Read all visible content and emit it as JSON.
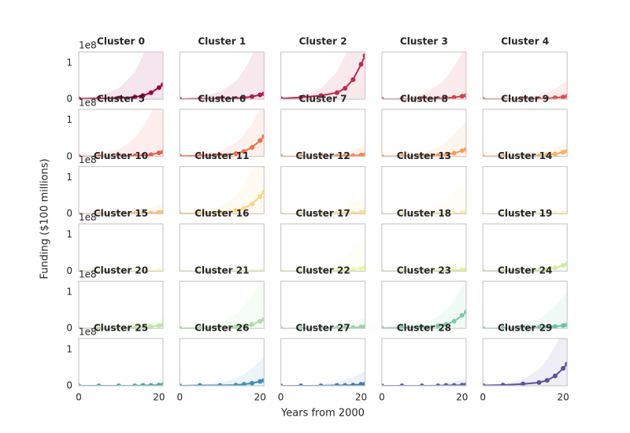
{
  "x_label": "Years from 2000",
  "y_label": "Funding ($100 millions)",
  "y_offset": "1e8",
  "x": [
    0,
    5,
    10,
    14,
    16,
    18,
    20,
    21
  ],
  "xlim": [
    0,
    21
  ],
  "ylim": [
    0,
    1.3
  ],
  "xticks": [
    0,
    20
  ],
  "yticks": [
    0,
    1
  ],
  "chart_data": [
    {
      "type": "line",
      "title": "Cluster 0",
      "color": "#9e0142",
      "values": [
        0.01,
        0.02,
        0.03,
        0.06,
        0.1,
        0.18,
        0.32,
        0.4
      ],
      "upper": [
        0.03,
        0.09,
        0.3,
        0.75,
        1.2,
        1.8,
        2.55,
        3
      ]
    },
    {
      "type": "line",
      "title": "Cluster 1",
      "color": "#b01a4a",
      "values": [
        0,
        0.01,
        0.01,
        0.02,
        0.04,
        0.07,
        0.12,
        0.15
      ],
      "upper": [
        0.02,
        0.06,
        0.2,
        0.5,
        0.8,
        1.2,
        1.7,
        2
      ]
    },
    {
      "type": "line",
      "title": "Cluster 2",
      "color": "#c2294a",
      "values": [
        0.02,
        0.05,
        0.1,
        0.18,
        0.3,
        0.54,
        0.96,
        1.2
      ],
      "upper": [
        0.03,
        0.09,
        0.3,
        0.75,
        1.2,
        1.8,
        2.55,
        3
      ]
    },
    {
      "type": "line",
      "title": "Cluster 3",
      "color": "#d53e4f",
      "values": [
        0,
        0,
        0.01,
        0.02,
        0.03,
        0.05,
        0.08,
        0.1
      ],
      "upper": [
        0.02,
        0.05,
        0.15,
        0.38,
        0.6,
        0.9,
        1.28,
        1.5
      ]
    },
    {
      "type": "line",
      "title": "Cluster 4",
      "color": "#e04a4c",
      "values": [
        0,
        0,
        0.01,
        0.01,
        0.02,
        0.04,
        0.06,
        0.08
      ],
      "upper": [
        0.01,
        0.02,
        0.05,
        0.13,
        0.2,
        0.3,
        0.43,
        0.5
      ]
    },
    {
      "type": "line",
      "title": "Cluster 5",
      "color": "#ea5c4a",
      "values": [
        0,
        0,
        0.01,
        0.02,
        0.03,
        0.05,
        0.1,
        0.12
      ],
      "upper": [
        0.02,
        0.06,
        0.2,
        0.5,
        0.8,
        1.2,
        1.7,
        2
      ]
    },
    {
      "type": "line",
      "title": "Cluster 6",
      "color": "#f46d43",
      "values": [
        0.01,
        0.02,
        0.04,
        0.08,
        0.14,
        0.25,
        0.44,
        0.55
      ],
      "upper": [
        0.02,
        0.05,
        0.15,
        0.38,
        0.6,
        0.9,
        1.28,
        1.5
      ]
    },
    {
      "type": "line",
      "title": "Cluster 7",
      "color": "#f7834d",
      "values": [
        0,
        0,
        0,
        0.01,
        0.01,
        0.02,
        0.04,
        0.05
      ],
      "upper": [
        0,
        0.01,
        0.03,
        0.08,
        0.12,
        0.18,
        0.26,
        0.3
      ]
    },
    {
      "type": "line",
      "title": "Cluster 8",
      "color": "#f99b57",
      "values": [
        0,
        0.01,
        0.02,
        0.03,
        0.05,
        0.09,
        0.16,
        0.2
      ],
      "upper": [
        0.01,
        0.03,
        0.1,
        0.25,
        0.4,
        0.6,
        0.85,
        1
      ]
    },
    {
      "type": "line",
      "title": "Cluster 9",
      "color": "#fdae61",
      "values": [
        0,
        0.01,
        0.01,
        0.02,
        0.04,
        0.07,
        0.12,
        0.15
      ],
      "upper": [
        0,
        0.01,
        0.04,
        0.1,
        0.16,
        0.24,
        0.34,
        0.4
      ]
    },
    {
      "type": "line",
      "title": "Cluster 10",
      "color": "#fdc171",
      "values": [
        0,
        0,
        0,
        0.01,
        0.01,
        0.02,
        0.04,
        0.05
      ],
      "upper": [
        0,
        0.01,
        0.03,
        0.08,
        0.12,
        0.18,
        0.26,
        0.3
      ]
    },
    {
      "type": "line",
      "title": "Cluster 11",
      "color": "#fed481",
      "values": [
        0.01,
        0.02,
        0.05,
        0.09,
        0.15,
        0.27,
        0.48,
        0.6
      ],
      "upper": [
        0.02,
        0.06,
        0.2,
        0.5,
        0.8,
        1.2,
        1.7,
        2
      ]
    },
    {
      "type": "line",
      "title": "Cluster 12",
      "color": "#fee08b",
      "values": [
        0,
        0,
        0,
        0.01,
        0.01,
        0.02,
        0.04,
        0.05
      ],
      "upper": [
        0.01,
        0.02,
        0.05,
        0.13,
        0.2,
        0.3,
        0.43,
        0.5
      ]
    },
    {
      "type": "line",
      "title": "Cluster 13",
      "color": "#feea9b",
      "values": [
        0,
        0,
        0,
        0,
        0.01,
        0.01,
        0.02,
        0.02
      ],
      "upper": [
        0.01,
        0.03,
        0.1,
        0.25,
        0.4,
        0.6,
        0.85,
        1
      ]
    },
    {
      "type": "line",
      "title": "Cluster 14",
      "color": "#fff4ad",
      "values": [
        0,
        0,
        0,
        0,
        0.01,
        0.01,
        0.02,
        0.02
      ],
      "upper": [
        0,
        0,
        0.01,
        0.03,
        0.04,
        0.06,
        0.09,
        0.1
      ]
    },
    {
      "type": "line",
      "title": "Cluster 15",
      "color": "#fefebd",
      "values": [
        0,
        0,
        0,
        0,
        0.01,
        0.01,
        0.02,
        0.02
      ],
      "upper": [
        0,
        0,
        0.01,
        0.03,
        0.04,
        0.06,
        0.09,
        0.1
      ]
    },
    {
      "type": "line",
      "title": "Cluster 16",
      "color": "#f6fbb2",
      "values": [
        0,
        0,
        0,
        0,
        0,
        0,
        0.01,
        0.01
      ],
      "upper": [
        0,
        0,
        0.01,
        0.03,
        0.04,
        0.06,
        0.09,
        0.1
      ]
    },
    {
      "type": "line",
      "title": "Cluster 17",
      "color": "#ebf7a2",
      "values": [
        0,
        0,
        0.01,
        0.02,
        0.03,
        0.05,
        0.08,
        0.1
      ],
      "upper": [
        0.01,
        0.03,
        0.1,
        0.25,
        0.4,
        0.6,
        0.85,
        1
      ]
    },
    {
      "type": "line",
      "title": "Cluster 18",
      "color": "#e6f598",
      "values": [
        0,
        0,
        0,
        0.01,
        0.01,
        0.02,
        0.04,
        0.05
      ],
      "upper": [
        0,
        0.01,
        0.02,
        0.05,
        0.08,
        0.12,
        0.17,
        0.2
      ]
    },
    {
      "type": "line",
      "title": "Cluster 19",
      "color": "#d1ec9c",
      "values": [
        0,
        0.01,
        0.02,
        0.03,
        0.05,
        0.09,
        0.16,
        0.2
      ],
      "upper": [
        0,
        0,
        0.01,
        0.03,
        0.04,
        0.06,
        0.09,
        0.1
      ]
    },
    {
      "type": "line",
      "title": "Cluster 20",
      "color": "#bde5a0",
      "values": [
        0,
        0,
        0.01,
        0.02,
        0.03,
        0.05,
        0.08,
        0.1
      ],
      "upper": [
        0,
        0.01,
        0.03,
        0.08,
        0.12,
        0.18,
        0.26,
        0.3
      ]
    },
    {
      "type": "line",
      "title": "Cluster 21",
      "color": "#abdda4",
      "values": [
        0.01,
        0.01,
        0.02,
        0.04,
        0.06,
        0.11,
        0.2,
        0.25
      ],
      "upper": [
        0.02,
        0.05,
        0.15,
        0.38,
        0.6,
        0.9,
        1.28,
        1.5
      ]
    },
    {
      "type": "line",
      "title": "Cluster 22",
      "color": "#94d4a4",
      "values": [
        0,
        0,
        0,
        0.01,
        0.01,
        0.02,
        0.04,
        0.05
      ],
      "upper": [
        0,
        0.01,
        0.03,
        0.08,
        0.12,
        0.18,
        0.26,
        0.3
      ]
    },
    {
      "type": "line",
      "title": "Cluster 23",
      "color": "#7ccba5",
      "values": [
        0.01,
        0.02,
        0.04,
        0.07,
        0.11,
        0.2,
        0.36,
        0.45
      ],
      "upper": [
        0.01,
        0.04,
        0.13,
        0.33,
        0.52,
        0.78,
        1.11,
        1.3
      ]
    },
    {
      "type": "line",
      "title": "Cluster 24",
      "color": "#66c2a5",
      "values": [
        0,
        0,
        0.01,
        0.02,
        0.03,
        0.05,
        0.08,
        0.1
      ],
      "upper": [
        0.01,
        0.03,
        0.1,
        0.25,
        0.4,
        0.6,
        0.85,
        1
      ]
    },
    {
      "type": "line",
      "title": "Cluster 25",
      "color": "#4ba6b1",
      "values": [
        0,
        0,
        0,
        0,
        0.01,
        0.01,
        0.02,
        0.03
      ],
      "upper": [
        0,
        0,
        0.01,
        0.03,
        0.04,
        0.06,
        0.09,
        0.1
      ]
    },
    {
      "type": "line",
      "title": "Cluster 26",
      "color": "#3d8fbb",
      "values": [
        0,
        0.01,
        0.01,
        0.02,
        0.04,
        0.07,
        0.12,
        0.15
      ],
      "upper": [
        0.01,
        0.02,
        0.08,
        0.2,
        0.32,
        0.48,
        0.68,
        0.8
      ]
    },
    {
      "type": "line",
      "title": "Cluster 27",
      "color": "#447bb5",
      "values": [
        0,
        0,
        0,
        0.01,
        0.01,
        0.02,
        0.04,
        0.05
      ],
      "upper": [
        0,
        0.01,
        0.04,
        0.1,
        0.16,
        0.24,
        0.34,
        0.4
      ]
    },
    {
      "type": "line",
      "title": "Cluster 28",
      "color": "#5466ab",
      "values": [
        0,
        0,
        0,
        0,
        0.01,
        0.01,
        0.02,
        0.03
      ],
      "upper": [
        0,
        0.01,
        0.02,
        0.05,
        0.08,
        0.12,
        0.17,
        0.2
      ]
    },
    {
      "type": "line",
      "title": "Cluster 29",
      "color": "#5e4fa2",
      "values": [
        0.01,
        0.02,
        0.05,
        0.09,
        0.15,
        0.27,
        0.48,
        0.6
      ],
      "upper": [
        0.02,
        0.05,
        0.18,
        0.45,
        0.72,
        1.08,
        1.53,
        1.8
      ]
    }
  ]
}
